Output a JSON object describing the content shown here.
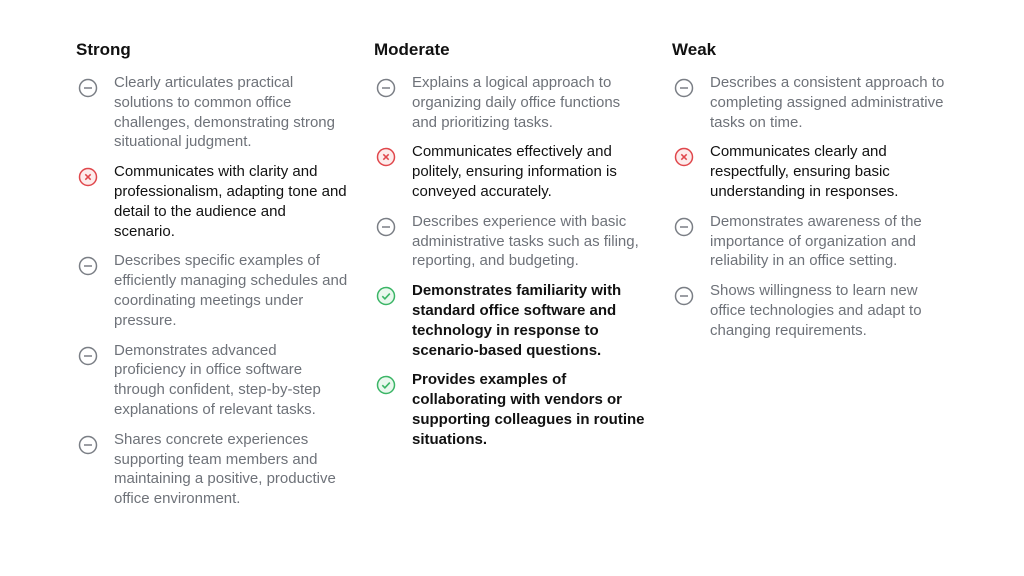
{
  "columns": [
    {
      "title": "Strong",
      "items": [
        "Clearly articulates practical solutions to common office challenges, demonstrating strong situational judgment.",
        "Communicates with clarity and professionalism, adapting tone and detail to the audience and scenario.",
        "Describes specific examples of efficiently managing schedules and coordinating meetings under pressure.",
        "Demonstrates advanced proficiency in office software through confident, step-by-step explanations of relevant tasks.",
        "Shares concrete experiences supporting team members and maintaining a positive, productive office environment."
      ]
    },
    {
      "title": "Moderate",
      "items": [
        "Explains a logical approach to organizing daily office functions and prioritizing tasks.",
        "Communicates effectively and politely, ensuring information is conveyed accurately.",
        "Describes experience with basic administrative tasks such as filing, reporting, and budgeting.",
        "Demonstrates familiarity with standard office software and technology in response to scenario-based questions.",
        "Provides examples of collaborating with vendors or supporting colleagues in routine situations."
      ]
    },
    {
      "title": "Weak",
      "items": [
        "Describes a consistent approach to completing assigned administrative tasks on time.",
        "Communicates clearly and respectfully, ensuring basic understanding in responses.",
        "Demonstrates awareness of the importance of organization and reliability in an office setting.",
        "Shows willingness to learn new office technologies and adapt to changing requirements."
      ]
    }
  ]
}
